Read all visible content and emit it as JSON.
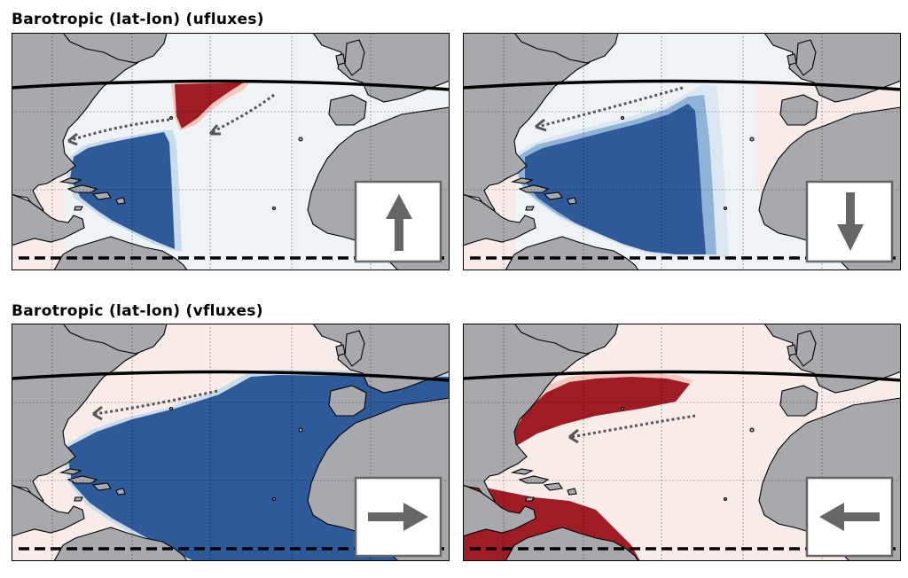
{
  "titles": {
    "ufluxes": "Barotropic (lat-lon) (ufluxes)",
    "vfluxes": "Barotropic (lat-lon) (vfluxes)"
  },
  "colors": {
    "ocean_background": "#eef3f6",
    "land": "#a8a9ad",
    "coastline": "#000000",
    "negative_strong": "#2f5a9a",
    "positive_strong": "#a01c24",
    "light_pink": "#f7ece7",
    "arrow_gray": "#666666"
  },
  "panels": [
    {
      "name": "uflux-positive",
      "inset_arrow": "up-arrow-icon",
      "anomaly": "positive-north / negative-south"
    },
    {
      "name": "uflux-negative",
      "inset_arrow": "down-arrow-icon",
      "anomaly": "negative"
    },
    {
      "name": "vflux-positive",
      "inset_arrow": "right-arrow-icon",
      "anomaly": "negative"
    },
    {
      "name": "vflux-negative",
      "inset_arrow": "left-arrow-icon",
      "anomaly": "positive"
    }
  ]
}
